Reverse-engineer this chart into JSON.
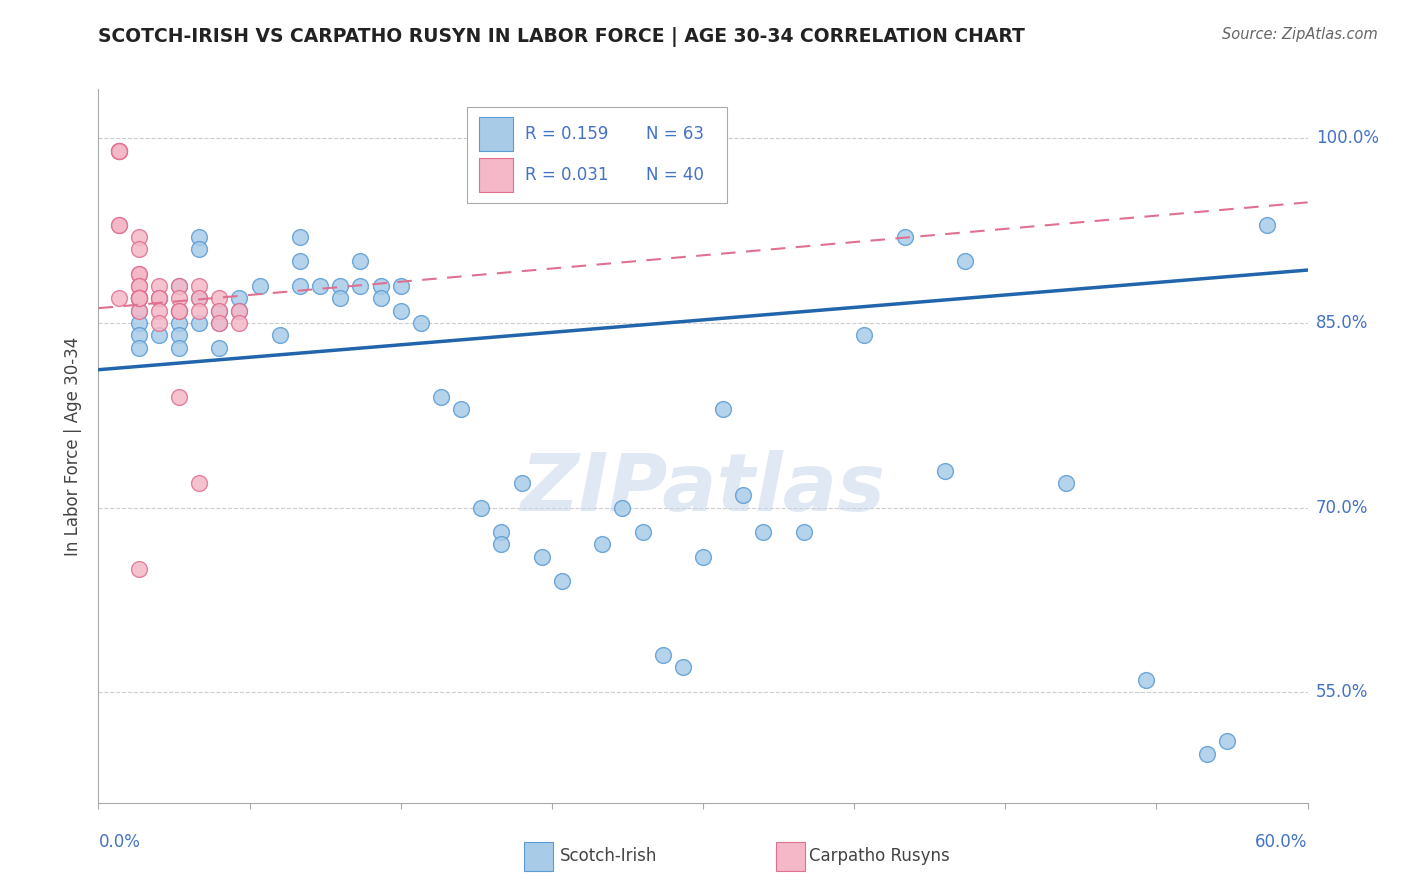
{
  "title": "SCOTCH-IRISH VS CARPATHO RUSYN IN LABOR FORCE | AGE 30-34 CORRELATION CHART",
  "source": "Source: ZipAtlas.com",
  "ylabel": "In Labor Force | Age 30-34",
  "ytick_labels": [
    "55.0%",
    "70.0%",
    "85.0%",
    "100.0%"
  ],
  "ytick_values": [
    0.55,
    0.7,
    0.85,
    1.0
  ],
  "xlim": [
    0.0,
    0.6
  ],
  "ylim": [
    0.46,
    1.04
  ],
  "legend_r_blue": "R = 0.159",
  "legend_n_blue": "N = 63",
  "legend_r_pink": "R = 0.031",
  "legend_n_pink": "N = 40",
  "legend_label_blue": "Scotch-Irish",
  "legend_label_pink": "Carpatho Rusyns",
  "blue_color": "#a8cce8",
  "blue_edge_color": "#5b9bd5",
  "pink_color": "#f4b8c8",
  "pink_edge_color": "#e07090",
  "trendline_blue_color": "#2166ac",
  "trendline_pink_color": "#e07090",
  "grid_color": "#cccccc",
  "watermark": "ZIPatlas",
  "blue_scatter_x": [
    0.02,
    0.02,
    0.02,
    0.02,
    0.02,
    0.03,
    0.03,
    0.04,
    0.04,
    0.04,
    0.04,
    0.04,
    0.05,
    0.05,
    0.05,
    0.05,
    0.06,
    0.06,
    0.06,
    0.07,
    0.07,
    0.08,
    0.09,
    0.1,
    0.1,
    0.1,
    0.11,
    0.12,
    0.12,
    0.13,
    0.13,
    0.14,
    0.14,
    0.15,
    0.15,
    0.16,
    0.17,
    0.18,
    0.19,
    0.2,
    0.2,
    0.21,
    0.22,
    0.23,
    0.25,
    0.26,
    0.27,
    0.28,
    0.29,
    0.3,
    0.31,
    0.32,
    0.33,
    0.35,
    0.38,
    0.4,
    0.42,
    0.43,
    0.48,
    0.52,
    0.55,
    0.56,
    0.58
  ],
  "blue_scatter_y": [
    0.87,
    0.86,
    0.85,
    0.84,
    0.83,
    0.87,
    0.84,
    0.88,
    0.86,
    0.85,
    0.84,
    0.83,
    0.92,
    0.91,
    0.87,
    0.85,
    0.86,
    0.85,
    0.83,
    0.87,
    0.86,
    0.88,
    0.84,
    0.92,
    0.9,
    0.88,
    0.88,
    0.88,
    0.87,
    0.9,
    0.88,
    0.88,
    0.87,
    0.88,
    0.86,
    0.85,
    0.79,
    0.78,
    0.7,
    0.68,
    0.67,
    0.72,
    0.66,
    0.64,
    0.67,
    0.7,
    0.68,
    0.58,
    0.57,
    0.66,
    0.78,
    0.71,
    0.68,
    0.68,
    0.84,
    0.92,
    0.73,
    0.9,
    0.72,
    0.56,
    0.5,
    0.51,
    0.93
  ],
  "pink_scatter_x": [
    0.01,
    0.01,
    0.01,
    0.01,
    0.01,
    0.01,
    0.02,
    0.02,
    0.02,
    0.02,
    0.02,
    0.02,
    0.02,
    0.02,
    0.02,
    0.02,
    0.02,
    0.02,
    0.03,
    0.03,
    0.03,
    0.03,
    0.03,
    0.04,
    0.04,
    0.04,
    0.04,
    0.04,
    0.05,
    0.05,
    0.05,
    0.05,
    0.06,
    0.06,
    0.06,
    0.07,
    0.07,
    0.02,
    0.02,
    0.01
  ],
  "pink_scatter_y": [
    0.99,
    0.99,
    0.99,
    0.99,
    0.93,
    0.93,
    0.92,
    0.91,
    0.89,
    0.89,
    0.88,
    0.88,
    0.87,
    0.87,
    0.87,
    0.87,
    0.86,
    0.87,
    0.88,
    0.87,
    0.87,
    0.86,
    0.85,
    0.88,
    0.87,
    0.86,
    0.86,
    0.79,
    0.88,
    0.87,
    0.86,
    0.72,
    0.87,
    0.86,
    0.85,
    0.86,
    0.85,
    0.87,
    0.65,
    0.87
  ],
  "blue_trend_x": [
    0.0,
    0.6
  ],
  "blue_trend_y": [
    0.812,
    0.893
  ],
  "pink_trend_x": [
    0.0,
    0.6
  ],
  "pink_trend_y": [
    0.862,
    0.948
  ]
}
